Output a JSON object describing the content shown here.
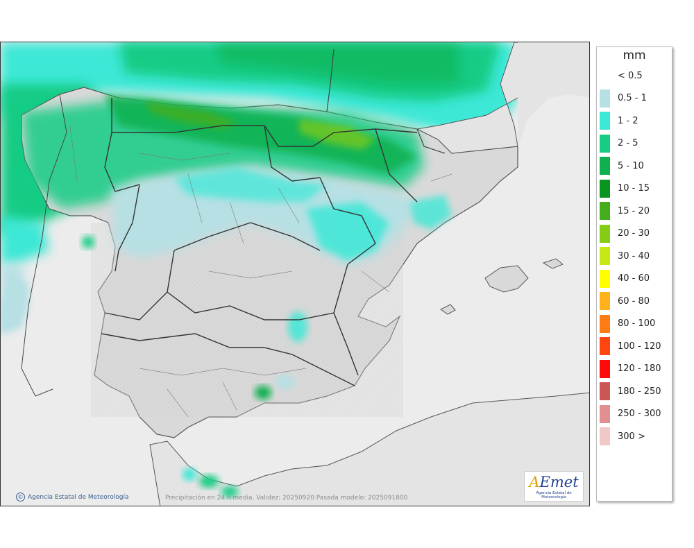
{
  "map": {
    "footer_note": "Precipitación en 24 h media. Validez: 20250920 Pasada modelo: 2025091800",
    "copyright": "Agencia Estatal de Meteorología",
    "copyright_icon": "copyright-icon",
    "logo_mark": "AEmet",
    "logo_subtitle": "Agencia Estatal de Meteorología",
    "land_color": "#dadada",
    "sea_color": "#ececec"
  },
  "legend": {
    "unit": "mm",
    "items": [
      {
        "label": "< 0.5",
        "color": "#ffffff"
      },
      {
        "label": "0.5 - 1",
        "color": "#b6e0e4"
      },
      {
        "label": "1 - 2",
        "color": "#3ee8d6"
      },
      {
        "label": "2 - 5",
        "color": "#19cc85"
      },
      {
        "label": "5 - 10",
        "color": "#10b050"
      },
      {
        "label": "10 - 15",
        "color": "#0a9420"
      },
      {
        "label": "15 - 20",
        "color": "#46ad1a"
      },
      {
        "label": "20 - 30",
        "color": "#86cc12"
      },
      {
        "label": "30 - 40",
        "color": "#c6e814"
      },
      {
        "label": "40 - 60",
        "color": "#ffff00"
      },
      {
        "label": "60 - 80",
        "color": "#ffb21a"
      },
      {
        "label": "80 - 100",
        "color": "#ff7c14"
      },
      {
        "label": "100 - 120",
        "color": "#ff4610"
      },
      {
        "label": "120 - 180",
        "color": "#ff0a0a"
      },
      {
        "label": "180 - 250",
        "color": "#cc5555"
      },
      {
        "label": "250 - 300",
        "color": "#e09090"
      },
      {
        "label": "300 >",
        "color": "#f0c8c8"
      }
    ]
  }
}
